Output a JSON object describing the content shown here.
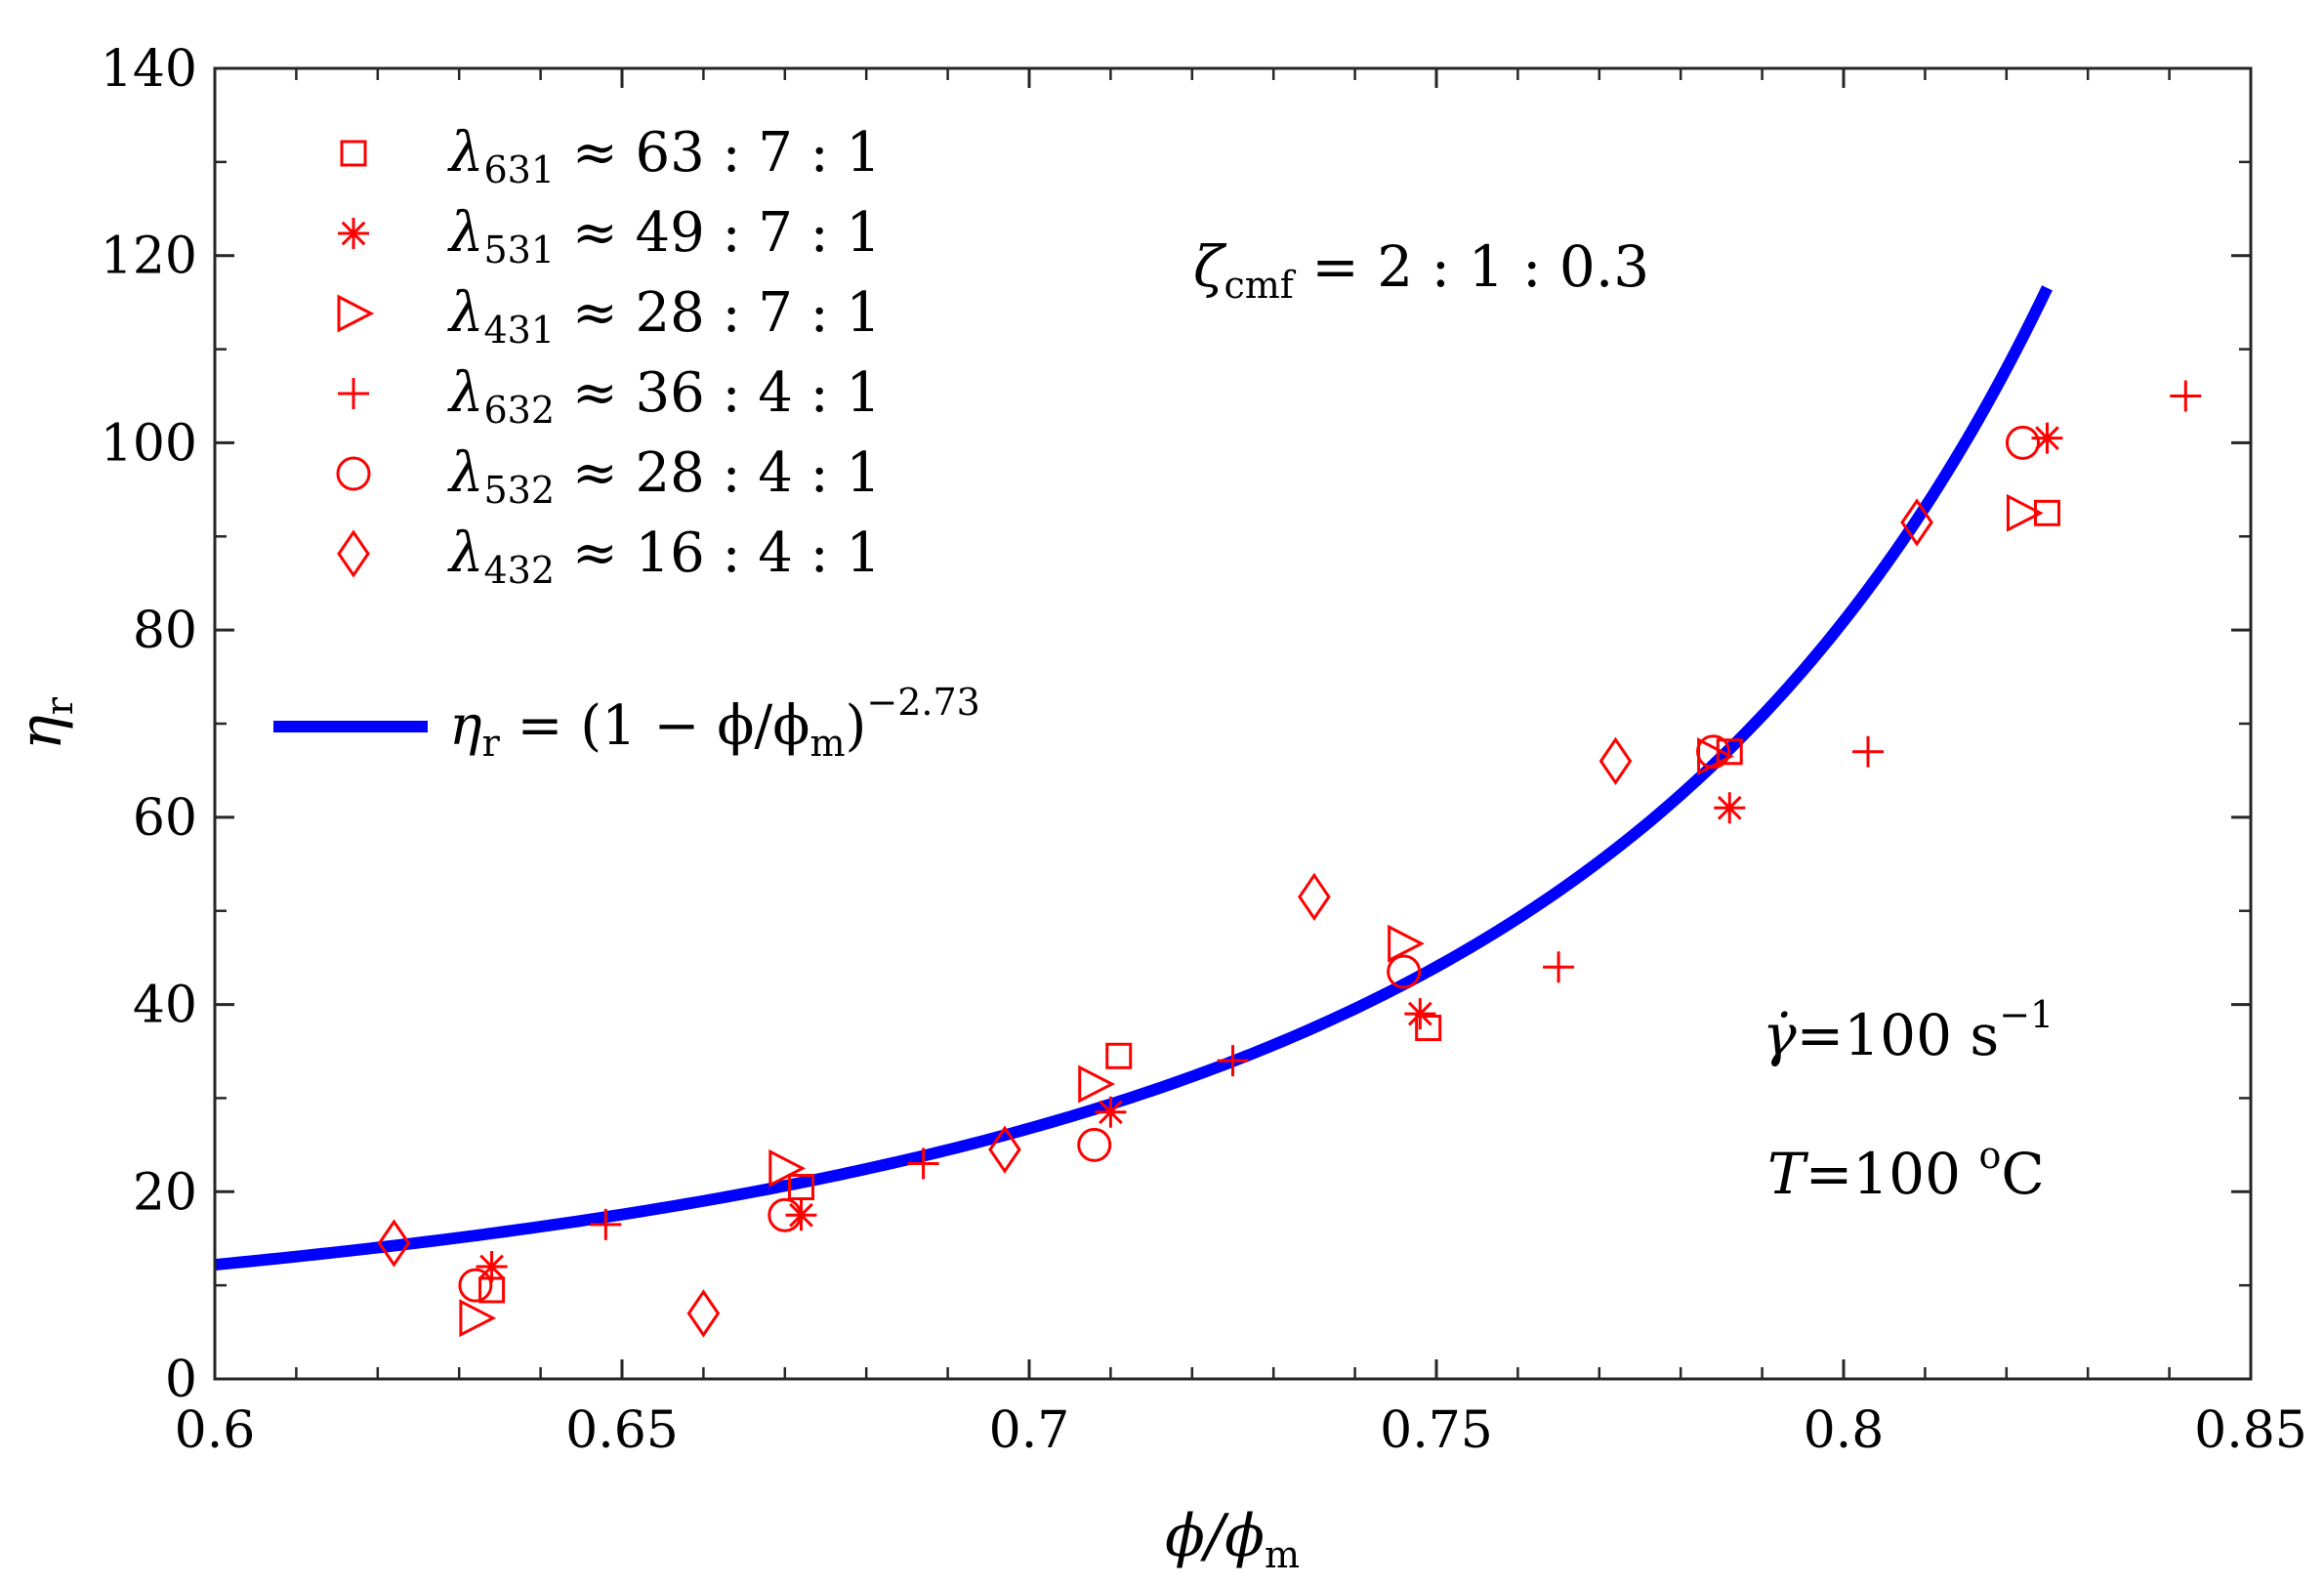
{
  "chart_data": {
    "type": "scatter",
    "title": "",
    "xlabel": "ϕ/ϕm",
    "ylabel": "ηr",
    "xlim": [
      0.6,
      0.85
    ],
    "ylim": [
      0,
      140
    ],
    "xticks": [
      {
        "value": 0.6,
        "label": "0.6"
      },
      {
        "value": 0.65,
        "label": "0.65"
      },
      {
        "value": 0.7,
        "label": "0.7"
      },
      {
        "value": 0.75,
        "label": "0.75"
      },
      {
        "value": 0.8,
        "label": "0.8"
      },
      {
        "value": 0.85,
        "label": "0.85"
      }
    ],
    "yticks": [
      {
        "value": 0,
        "label": "0"
      },
      {
        "value": 20,
        "label": "20"
      },
      {
        "value": 40,
        "label": "40"
      },
      {
        "value": 60,
        "label": "60"
      },
      {
        "value": 80,
        "label": "80"
      },
      {
        "value": 100,
        "label": "100"
      },
      {
        "value": 120,
        "label": "120"
      },
      {
        "value": 140,
        "label": "140"
      }
    ],
    "legend_position": "top-left",
    "marker_color": "#ff0000",
    "line_color": "#0000ff",
    "series": [
      {
        "name": "lambda631",
        "label_main": "λ",
        "label_sub": "631",
        "label_rest": " ≈ 63 : 7 : 1",
        "marker": "square",
        "points": [
          [
            0.634,
            9.5
          ],
          [
            0.672,
            20.5
          ],
          [
            0.711,
            34.5
          ],
          [
            0.749,
            37.5
          ],
          [
            0.786,
            67
          ],
          [
            0.825,
            92.5
          ]
        ]
      },
      {
        "name": "lambda531",
        "label_main": "λ",
        "label_sub": "531",
        "label_rest": " ≈ 49 : 7 : 1",
        "marker": "asterisk",
        "points": [
          [
            0.634,
            12
          ],
          [
            0.672,
            17.5
          ],
          [
            0.71,
            28.5
          ],
          [
            0.748,
            39
          ],
          [
            0.786,
            61
          ],
          [
            0.825,
            100.5
          ]
        ]
      },
      {
        "name": "lambda431",
        "label_main": "λ",
        "label_sub": "431",
        "label_rest": " ≈ 28 : 7 : 1",
        "marker": "triangle-right",
        "points": [
          [
            0.632,
            6.5
          ],
          [
            0.67,
            22.5
          ],
          [
            0.708,
            31.5
          ],
          [
            0.746,
            46.5
          ],
          [
            0.784,
            66.5
          ],
          [
            0.822,
            92.5
          ]
        ]
      },
      {
        "name": "lambda632",
        "label_main": "λ",
        "label_sub": "632",
        "label_rest": " ≈ 36 : 4 : 1",
        "marker": "plus",
        "points": [
          [
            0.648,
            16.5
          ],
          [
            0.687,
            23
          ],
          [
            0.725,
            34
          ],
          [
            0.765,
            44
          ],
          [
            0.803,
            67
          ],
          [
            0.842,
            105
          ]
        ]
      },
      {
        "name": "lambda532",
        "label_main": "λ",
        "label_sub": "532",
        "label_rest": " ≈ 28 : 4 : 1",
        "marker": "circle",
        "points": [
          [
            0.632,
            10
          ],
          [
            0.67,
            17.5
          ],
          [
            0.708,
            25
          ],
          [
            0.746,
            43.5
          ],
          [
            0.784,
            67
          ],
          [
            0.822,
            100
          ]
        ]
      },
      {
        "name": "lambda432",
        "label_main": "λ",
        "label_sub": "432",
        "label_rest": " ≈ 16 : 4 : 1",
        "marker": "diamond",
        "points": [
          [
            0.622,
            14.5
          ],
          [
            0.66,
            7
          ],
          [
            0.697,
            24.5
          ],
          [
            0.735,
            51.5
          ],
          [
            0.772,
            66
          ],
          [
            0.809,
            91.5
          ]
        ]
      }
    ],
    "fit": {
      "label_lhs_main": "η",
      "label_lhs_sub": "r",
      "label_rhs": " = (1 − ϕ/ϕ",
      "label_rhs_sub": "m",
      "label_close": ")",
      "label_exp": "−2.73",
      "exponent": -2.73,
      "x_start": 0.6,
      "x_end": 0.825
    },
    "annotations": {
      "zeta_main": "ζ",
      "zeta_sub": "cmf",
      "zeta_rest": " = 2 : 1 : 0.3",
      "shear_symbol": "γ̇",
      "shear_rest": "=100 s",
      "shear_exp": "−1",
      "temp_symbol": "T",
      "temp_rest": "=100 ",
      "temp_sup": "o",
      "temp_unit": "C"
    },
    "axis_labels": {
      "x_main": "ϕ/ϕ",
      "x_sub": "m",
      "y_main": "η",
      "y_sub": "r"
    }
  }
}
